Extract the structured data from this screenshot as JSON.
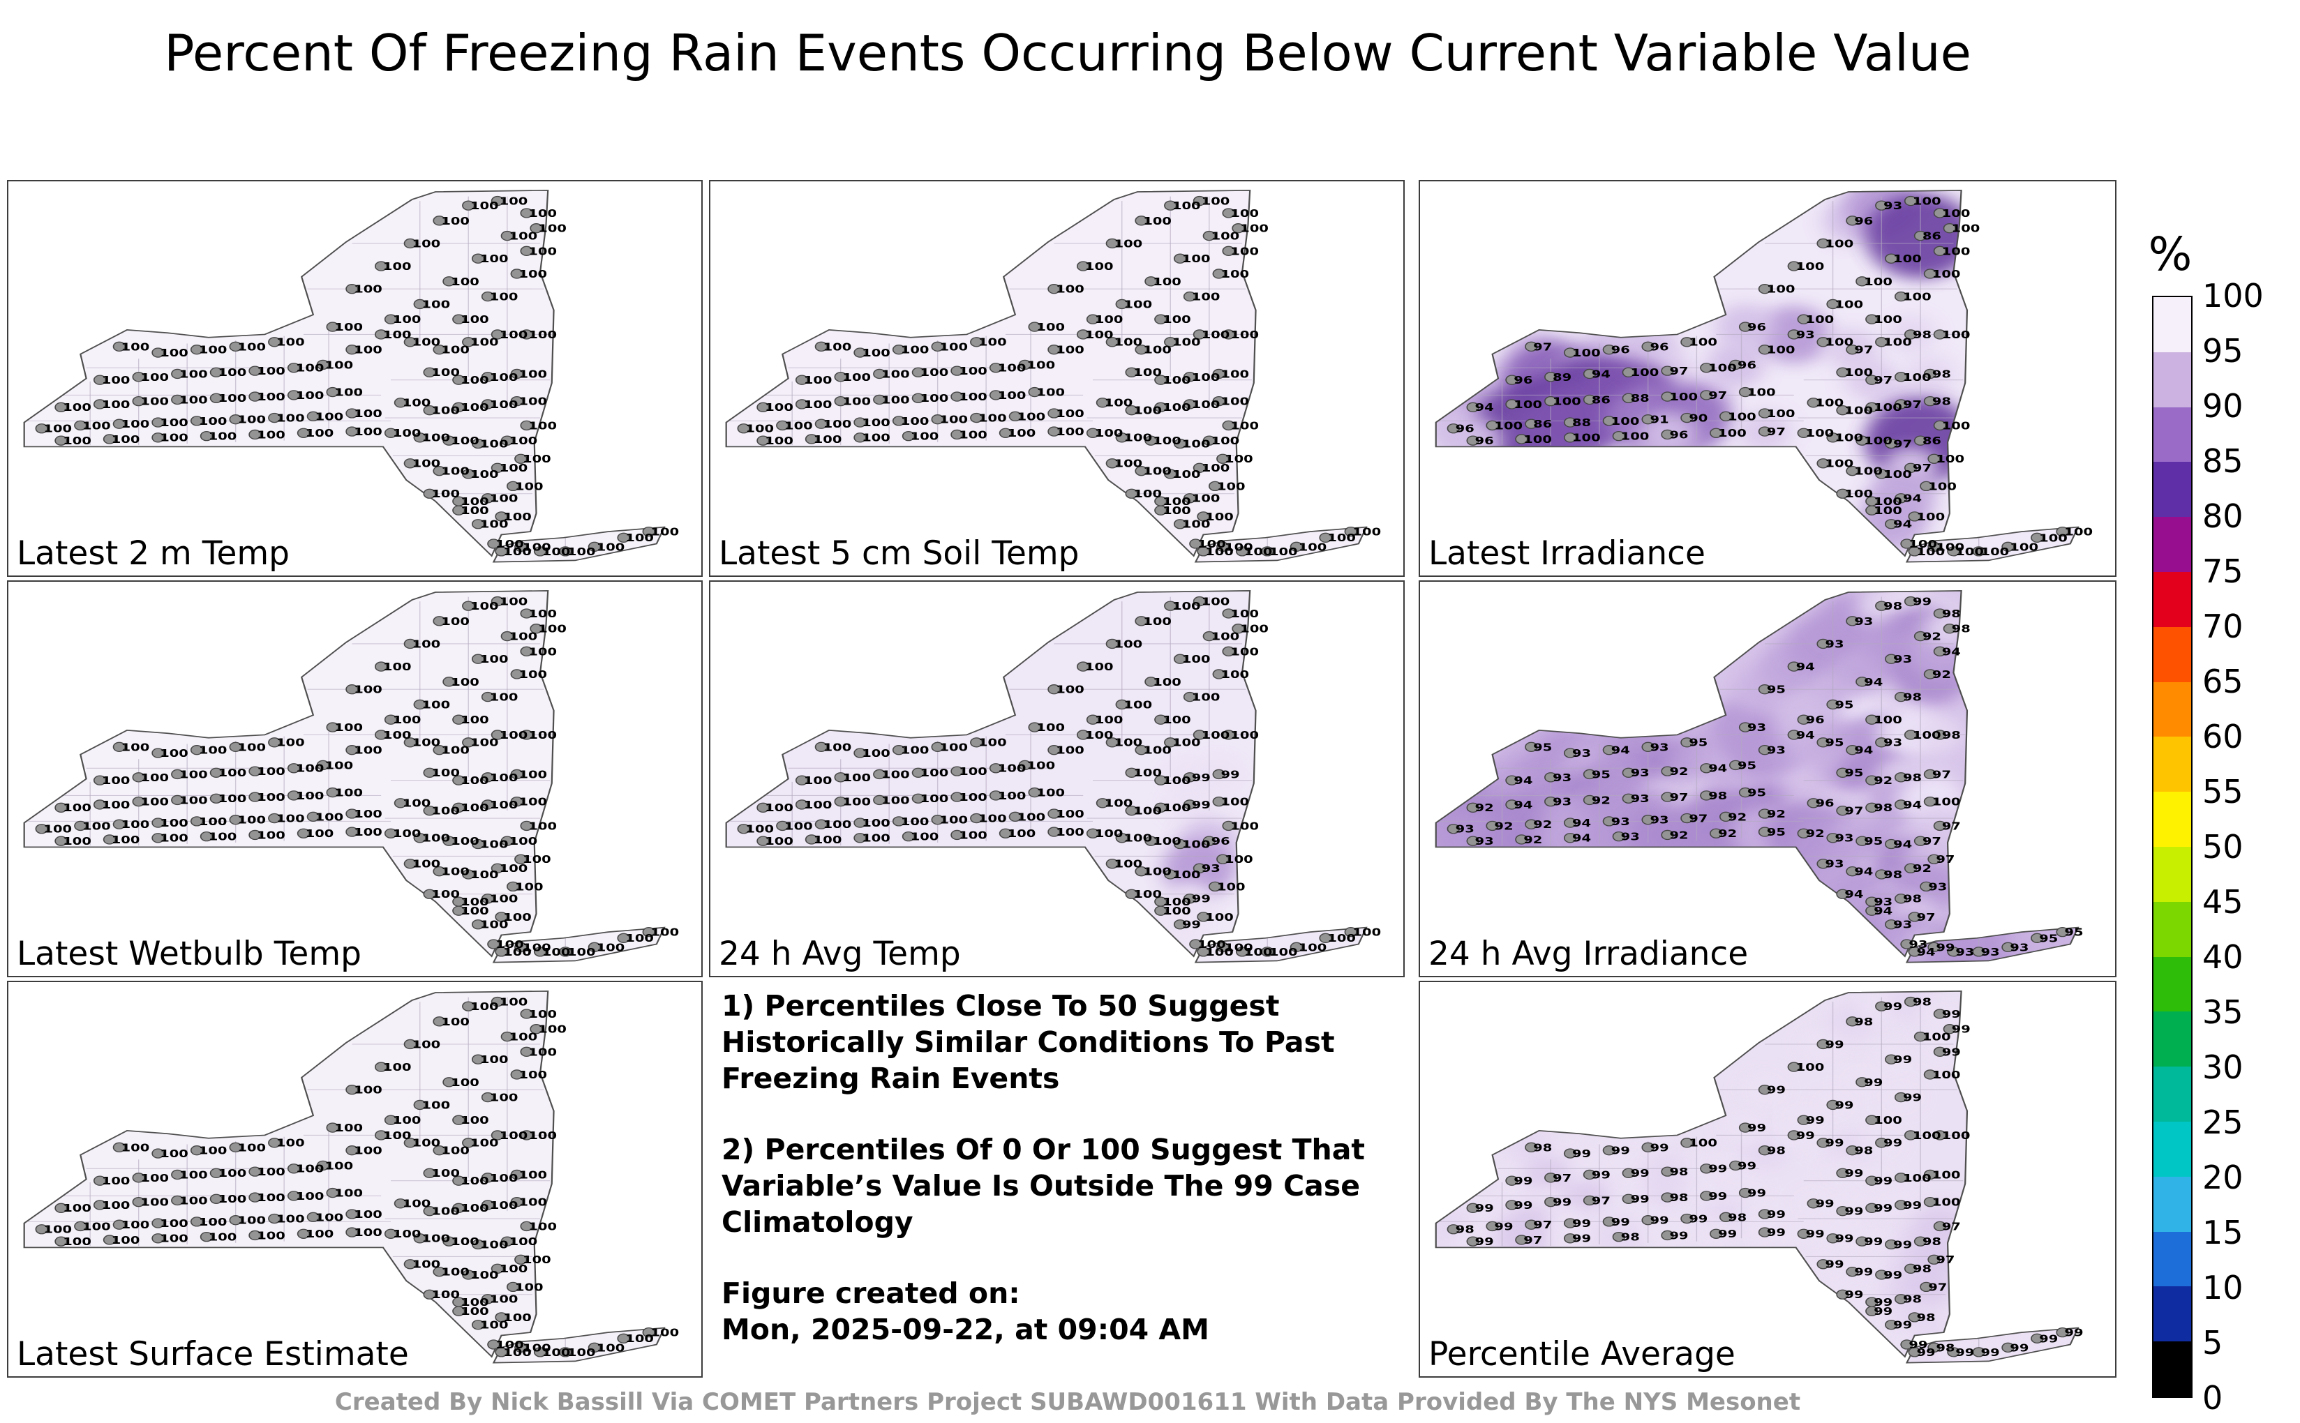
{
  "title": "Percent Of Freezing Rain Events Occurring Below Current Variable Value",
  "footer": "Created By Nick Bassill Via COMET Partners Project SUBAWD001611 With Data Provided By The NYS Mesonet",
  "notes": {
    "note1": "1) Percentiles Close To 50 Suggest Historically Similar Conditions To Past Freezing Rain Events",
    "note2": "2) Percentiles Of 0 Or 100 Suggest That Variable’s Value Is Outside The 99 Case Climatology",
    "created_label": "Figure created on:",
    "created_value": "Mon, 2025-09-22, at 09:04 AM"
  },
  "chart_data": {
    "type": "heatmap",
    "subtype": "station-percentile-maps",
    "region": "New York State (NYS Mesonet stations)",
    "unit": "%",
    "colorbar": {
      "title": "%",
      "ticks": [
        100,
        95,
        90,
        85,
        80,
        75,
        70,
        65,
        60,
        55,
        50,
        45,
        40,
        35,
        30,
        25,
        20,
        15,
        10,
        5,
        0
      ],
      "segment_colors": [
        "#f5f0fa",
        "#cbb2e0",
        "#9a6cc8",
        "#5f2fa8",
        "#970f8e",
        "#e2001c",
        "#ff5200",
        "#ff8c00",
        "#ffc400",
        "#fff200",
        "#c8ee00",
        "#7cd600",
        "#2ebe0a",
        "#00b050",
        "#00b89a",
        "#00c6c6",
        "#30b4e8",
        "#1e6eda",
        "#0f2ca0",
        "#000000"
      ]
    },
    "stations": [
      [
        55,
        108
      ],
      [
        75,
        112
      ],
      [
        95,
        110
      ],
      [
        115,
        108
      ],
      [
        135,
        105
      ],
      [
        45,
        130
      ],
      [
        65,
        128
      ],
      [
        85,
        126
      ],
      [
        105,
        125
      ],
      [
        125,
        124
      ],
      [
        145,
        122
      ],
      [
        25,
        148
      ],
      [
        45,
        146
      ],
      [
        65,
        144
      ],
      [
        85,
        143
      ],
      [
        105,
        142
      ],
      [
        125,
        141
      ],
      [
        145,
        140
      ],
      [
        165,
        138
      ],
      [
        15,
        162
      ],
      [
        35,
        160
      ],
      [
        55,
        159
      ],
      [
        75,
        158
      ],
      [
        95,
        157
      ],
      [
        115,
        156
      ],
      [
        135,
        155
      ],
      [
        155,
        154
      ],
      [
        175,
        152
      ],
      [
        25,
        170
      ],
      [
        50,
        169
      ],
      [
        75,
        168
      ],
      [
        100,
        167
      ],
      [
        125,
        166
      ],
      [
        150,
        165
      ],
      [
        175,
        164
      ],
      [
        160,
        120
      ],
      [
        175,
        110
      ],
      [
        190,
        100
      ],
      [
        165,
        95
      ],
      [
        175,
        70
      ],
      [
        190,
        55
      ],
      [
        205,
        40
      ],
      [
        220,
        25
      ],
      [
        235,
        15
      ],
      [
        250,
        12
      ],
      [
        265,
        20
      ],
      [
        255,
        35
      ],
      [
        240,
        50
      ],
      [
        225,
        65
      ],
      [
        210,
        80
      ],
      [
        195,
        90
      ],
      [
        230,
        90
      ],
      [
        245,
        75
      ],
      [
        260,
        60
      ],
      [
        265,
        45
      ],
      [
        270,
        30
      ],
      [
        205,
        105
      ],
      [
        220,
        110
      ],
      [
        235,
        105
      ],
      [
        250,
        100
      ],
      [
        265,
        100
      ],
      [
        215,
        125
      ],
      [
        230,
        130
      ],
      [
        245,
        128
      ],
      [
        260,
        126
      ],
      [
        200,
        145
      ],
      [
        215,
        150
      ],
      [
        230,
        148
      ],
      [
        245,
        146
      ],
      [
        260,
        144
      ],
      [
        195,
        165
      ],
      [
        210,
        168
      ],
      [
        225,
        170
      ],
      [
        240,
        172
      ],
      [
        255,
        170
      ],
      [
        265,
        160
      ],
      [
        205,
        185
      ],
      [
        220,
        190
      ],
      [
        235,
        192
      ],
      [
        250,
        188
      ],
      [
        262,
        182
      ],
      [
        215,
        205
      ],
      [
        230,
        210
      ],
      [
        245,
        208
      ],
      [
        258,
        200
      ],
      [
        230,
        216
      ],
      [
        240,
        225
      ],
      [
        252,
        220
      ],
      [
        248,
        238
      ],
      [
        252,
        243
      ],
      [
        262,
        240
      ],
      [
        272,
        243
      ],
      [
        285,
        243
      ],
      [
        300,
        240
      ],
      [
        315,
        234
      ],
      [
        328,
        230
      ]
    ],
    "panels": [
      {
        "label": "Latest 2 m Temp",
        "base_color": "#f6f2fa",
        "default_value": 100,
        "blob_mode": "none",
        "overrides": {}
      },
      {
        "label": "Latest 5 cm Soil Temp",
        "base_color": "#f4eff9",
        "default_value": 100,
        "blob_mode": "none",
        "overrides": {}
      },
      {
        "label": "Latest Irradiance",
        "base_color": "#f0e9f8",
        "default_value": 100,
        "blob_mode": "dark",
        "overrides": {
          "0": 97,
          "2": 96,
          "3": 96,
          "5": 96,
          "6": 89,
          "7": 94,
          "9": 97,
          "11": 94,
          "14": 86,
          "15": 88,
          "17": 97,
          "19": 96,
          "21": 86,
          "22": 88,
          "24": 91,
          "25": 90,
          "28": 96,
          "32": 96,
          "34": 97,
          "35": 96,
          "37": 93,
          "38": 96,
          "42": 96,
          "43": 93,
          "46": 86,
          "57": 97,
          "59": 98,
          "62": 97,
          "64": 98,
          "68": 97,
          "69": 98,
          "73": 97,
          "74": 86,
          "79": 97,
          "83": 94,
          "86": 94
        }
      },
      {
        "label": "Latest Wetbulb Temp",
        "base_color": "#f6f2fa",
        "default_value": 100,
        "blob_mode": "none",
        "overrides": {}
      },
      {
        "label": "24 h Avg Temp",
        "base_color": "#efe8f7",
        "default_value": 100,
        "blob_mode": "dark",
        "overrides": {
          "63": 99,
          "64": 99,
          "68": 99,
          "74": 96,
          "79": 93,
          "83": 99,
          "86": 99
        }
      },
      {
        "label": "24 h Avg Irradiance",
        "base_color": "#d8c5ea",
        "default_value": 94,
        "blob_mode": "both",
        "overrides": {
          "0": 95,
          "1": 93,
          "3": 93,
          "4": 95,
          "6": 93,
          "7": 95,
          "8": 93,
          "9": 92,
          "11": 92,
          "13": 93,
          "14": 92,
          "15": 93,
          "16": 97,
          "17": 98,
          "18": 95,
          "19": 93,
          "20": 92,
          "21": 92,
          "23": 93,
          "24": 93,
          "25": 97,
          "26": 92,
          "27": 92,
          "28": 93,
          "29": 92,
          "31": 93,
          "32": 92,
          "33": 92,
          "34": 95,
          "35": 95,
          "36": 93,
          "38": 93,
          "39": 95,
          "41": 93,
          "42": 93,
          "43": 98,
          "44": 99,
          "45": 98,
          "46": 92,
          "47": 93,
          "49": 95,
          "50": 96,
          "51": 100,
          "52": 98,
          "53": 92,
          "55": 98,
          "56": 95,
          "58": 93,
          "59": 100,
          "60": 98,
          "61": 95,
          "62": 92,
          "63": 98,
          "64": 97,
          "65": 96,
          "66": 97,
          "67": 98,
          "69": 100,
          "70": 92,
          "71": 93,
          "72": 95,
          "74": 97,
          "75": 97,
          "76": 93,
          "78": 98,
          "79": 92,
          "80": 97,
          "82": 93,
          "83": 98,
          "84": 93,
          "86": 93,
          "87": 97,
          "88": 93,
          "90": 99,
          "91": 93,
          "92": 93,
          "93": 93,
          "94": 95,
          "95": 95
        }
      },
      {
        "label": "Latest Surface Estimate",
        "base_color": "#f5f1f9",
        "default_value": 100,
        "blob_mode": "none",
        "overrides": {}
      },
      {
        "label": "Percentile Average",
        "base_color": "#ebe1f4",
        "default_value": 99,
        "blob_mode": "dark",
        "overrides": {
          "0": 98,
          "4": 100,
          "6": 97,
          "9": 98,
          "14": 97,
          "16": 98,
          "19": 98,
          "21": 97,
          "26": 98,
          "29": 97,
          "31": 98,
          "36": 98,
          "40": 100,
          "42": 98,
          "44": 98,
          "46": 100,
          "51": 100,
          "53": 100,
          "57": 98,
          "59": 100,
          "60": 100,
          "63": 100,
          "64": 100,
          "69": 100,
          "74": 98,
          "75": 97,
          "79": 98,
          "80": 97,
          "83": 98,
          "84": 97,
          "87": 98,
          "90": 98
        }
      }
    ]
  }
}
